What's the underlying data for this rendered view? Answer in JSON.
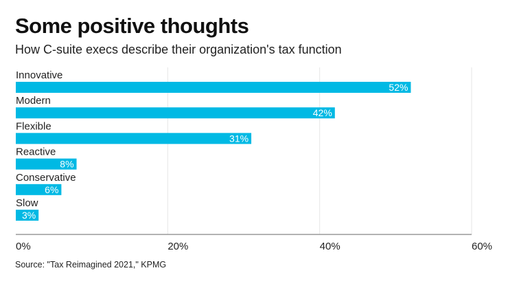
{
  "title": "Some positive thoughts",
  "subtitle": "How C-suite execs describe their organization's tax function",
  "source": "Source: \"Tax Reimagined 2021,\" KPMG",
  "chart_data": {
    "type": "bar",
    "orientation": "horizontal",
    "categories": [
      "Innovative",
      "Modern",
      "Flexible",
      "Reactive",
      "Conservative",
      "Slow"
    ],
    "values": [
      52,
      42,
      31,
      8,
      6,
      3
    ],
    "value_labels": [
      "52%",
      "42%",
      "31%",
      "8%",
      "6%",
      "3%"
    ],
    "xlim": [
      0,
      60
    ],
    "xticks": [
      0,
      20,
      40,
      60
    ],
    "xtick_labels": [
      "0%",
      "20%",
      "40%",
      "60%"
    ],
    "xlabel": "",
    "ylabel": "",
    "grid": true,
    "bar_color": "#00b9e4",
    "grid_color": "#e6e6e6",
    "axis_color": "#999999"
  }
}
